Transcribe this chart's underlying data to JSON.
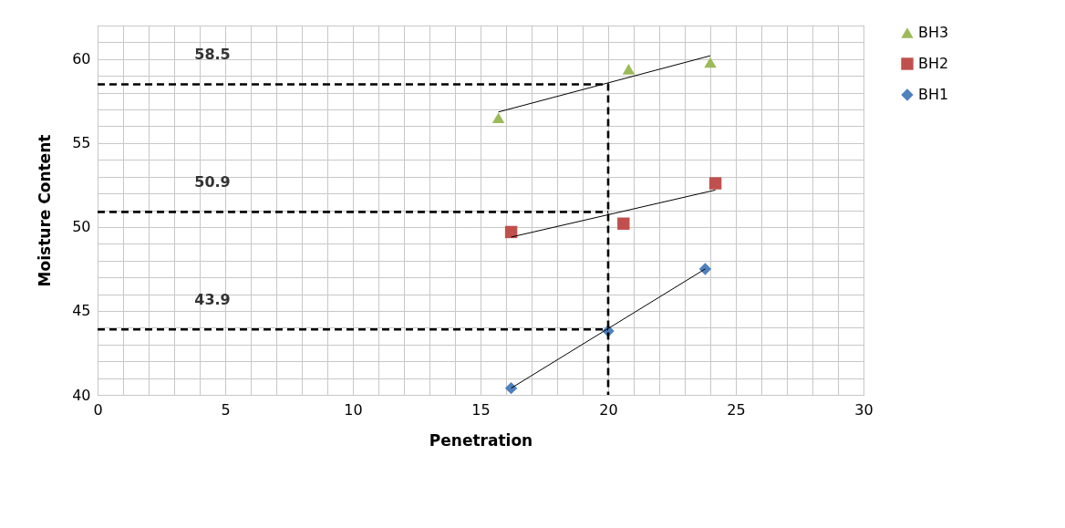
{
  "chart_data": {
    "type": "scatter",
    "xlabel": "Penetration",
    "ylabel": "Moisture Content",
    "xlim": [
      0,
      30
    ],
    "xticks": [
      0,
      5,
      10,
      15,
      20,
      25,
      30
    ],
    "ylim": [
      40,
      62
    ],
    "yticks": [
      40,
      45,
      50,
      55,
      60
    ],
    "grid": true,
    "legend": "right",
    "series": [
      {
        "name": "BH3",
        "color": "#9bbb59",
        "marker": "triangle",
        "x": [
          15.7,
          20.8,
          24.0
        ],
        "values": [
          56.5,
          59.4,
          59.8
        ]
      },
      {
        "name": "BH2",
        "color": "#c0504d",
        "marker": "square",
        "x": [
          16.2,
          20.6,
          24.2
        ],
        "values": [
          49.7,
          50.2,
          52.6
        ]
      },
      {
        "name": "BH1",
        "color": "#4f81bd",
        "marker": "diamond",
        "x": [
          16.2,
          20.0,
          23.8
        ],
        "values": [
          40.4,
          43.8,
          47.5
        ]
      },
      {
        "type": "line",
        "color": "#000000",
        "line_style": "solid",
        "x": [
          15.7,
          24.0
        ],
        "values": [
          56.85,
          60.2
        ]
      },
      {
        "type": "line",
        "color": "#000000",
        "line_style": "solid",
        "x": [
          16.2,
          24.2
        ],
        "values": [
          49.4,
          52.2
        ]
      },
      {
        "type": "line",
        "color": "#000000",
        "line_style": "solid",
        "x": [
          16.2,
          23.8
        ],
        "values": [
          40.4,
          47.5
        ]
      },
      {
        "type": "line",
        "color": "#000000",
        "line_style": "dashed",
        "x": [
          0,
          20,
          20
        ],
        "values": [
          58.5,
          58.5,
          40
        ]
      },
      {
        "type": "line",
        "color": "#000000",
        "line_style": "dashed",
        "x": [
          0,
          20
        ],
        "values": [
          50.9,
          50.9
        ]
      },
      {
        "type": "line",
        "color": "#000000",
        "line_style": "dashed",
        "x": [
          0,
          20
        ],
        "values": [
          43.9,
          43.9
        ]
      }
    ],
    "annotations": [
      {
        "text": "58.5",
        "y": 58.5
      },
      {
        "text": "50.9",
        "y": 50.9
      },
      {
        "text": "43.9",
        "y": 43.9
      }
    ]
  }
}
